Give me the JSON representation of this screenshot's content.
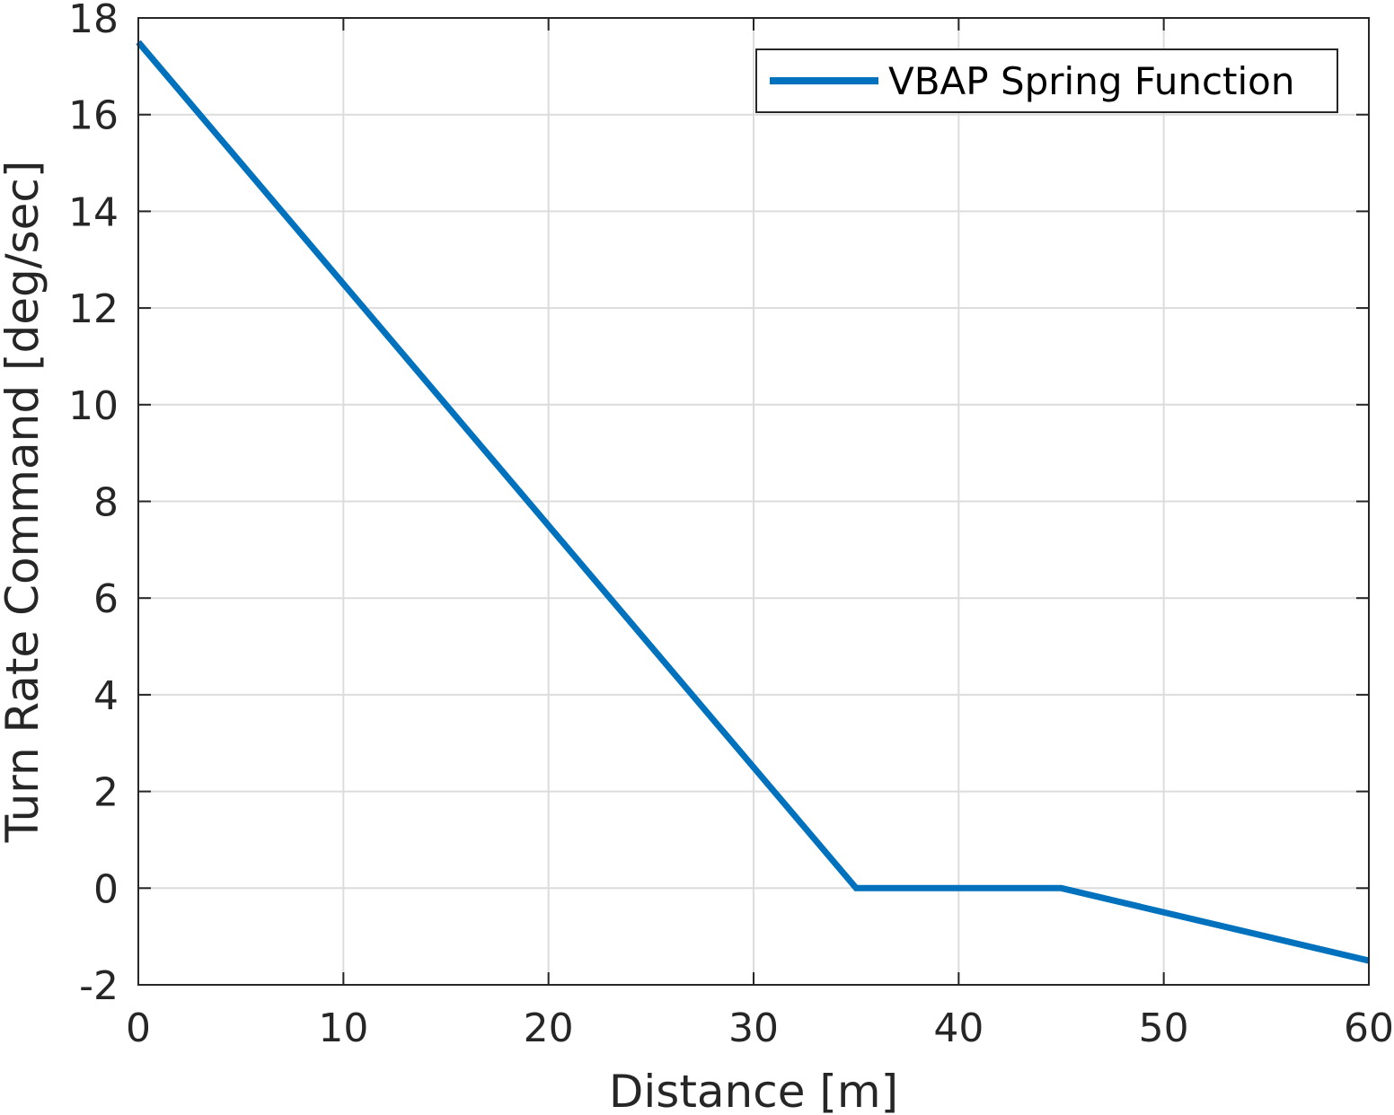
{
  "chart_data": {
    "type": "line",
    "title": "",
    "xlabel": "Distance [m]",
    "ylabel": "Turn Rate Command [deg/sec]",
    "xlim": [
      0,
      60
    ],
    "ylim": [
      -2,
      18
    ],
    "xticks": [
      0,
      10,
      20,
      30,
      40,
      50,
      60
    ],
    "yticks": [
      -2,
      0,
      2,
      4,
      6,
      8,
      10,
      12,
      14,
      16,
      18
    ],
    "xtick_labels": [
      "0",
      "10",
      "20",
      "30",
      "40",
      "50",
      "60"
    ],
    "ytick_labels": [
      "-2",
      "0",
      "2",
      "4",
      "6",
      "8",
      "10",
      "12",
      "14",
      "16",
      "18"
    ],
    "grid": true,
    "legend_position": "top-right",
    "series": [
      {
        "name": "VBAP Spring Function",
        "color": "#0072BD",
        "x": [
          0,
          35,
          45,
          60
        ],
        "y": [
          17.5,
          0,
          0,
          -1.5
        ]
      }
    ]
  }
}
